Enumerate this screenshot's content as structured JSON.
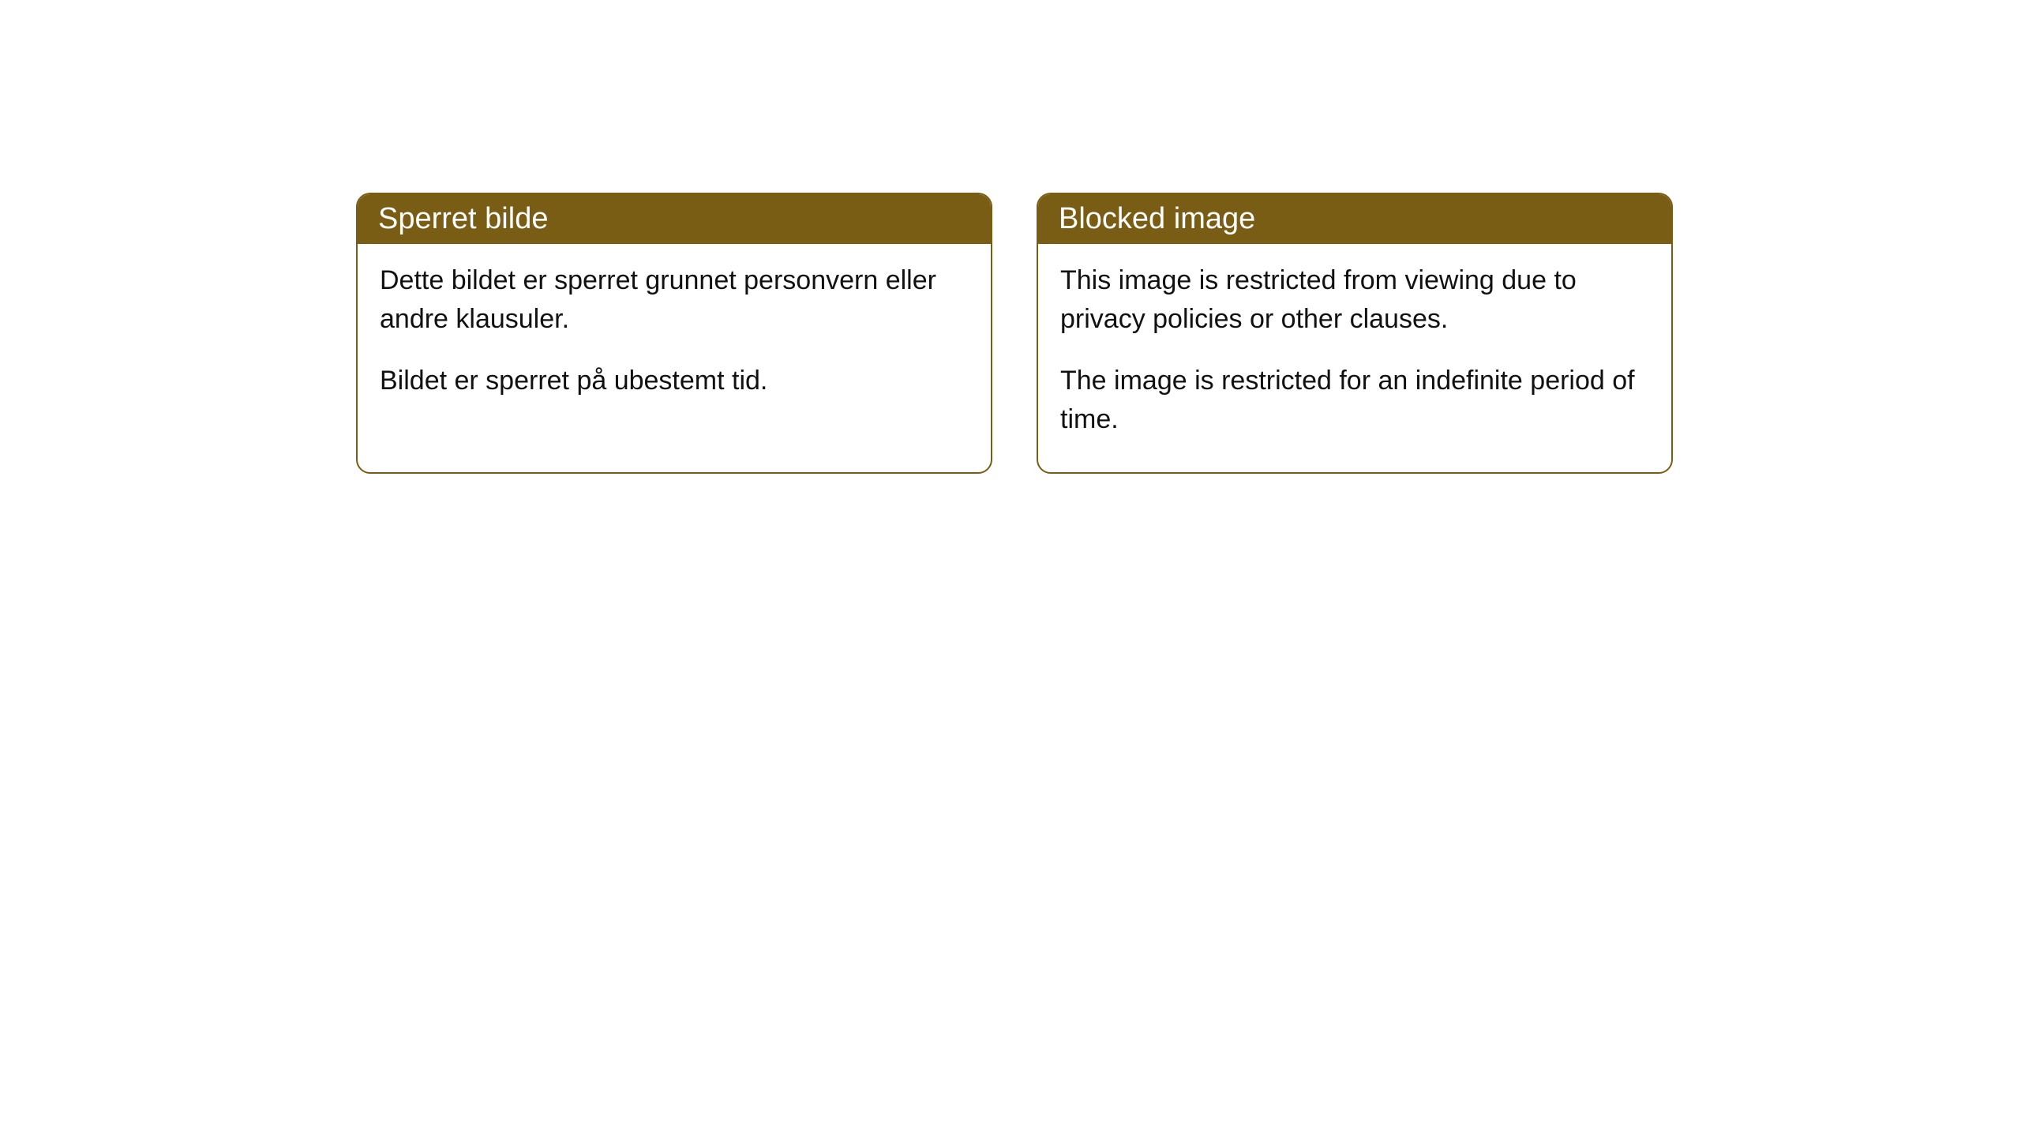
{
  "colors": {
    "header_bg": "#7a5d14",
    "header_text": "#ffffff",
    "border": "#7a5d14",
    "body_bg": "#ffffff",
    "body_text": "#111111"
  },
  "cards": [
    {
      "title": "Sperret bilde",
      "paragraphs": [
        "Dette bildet er sperret grunnet personvern eller andre klausuler.",
        "Bildet er sperret på ubestemt tid."
      ]
    },
    {
      "title": "Blocked image",
      "paragraphs": [
        "This image is restricted from viewing due to privacy policies or other clauses.",
        "The image is restricted for an indefinite period of time."
      ]
    }
  ]
}
